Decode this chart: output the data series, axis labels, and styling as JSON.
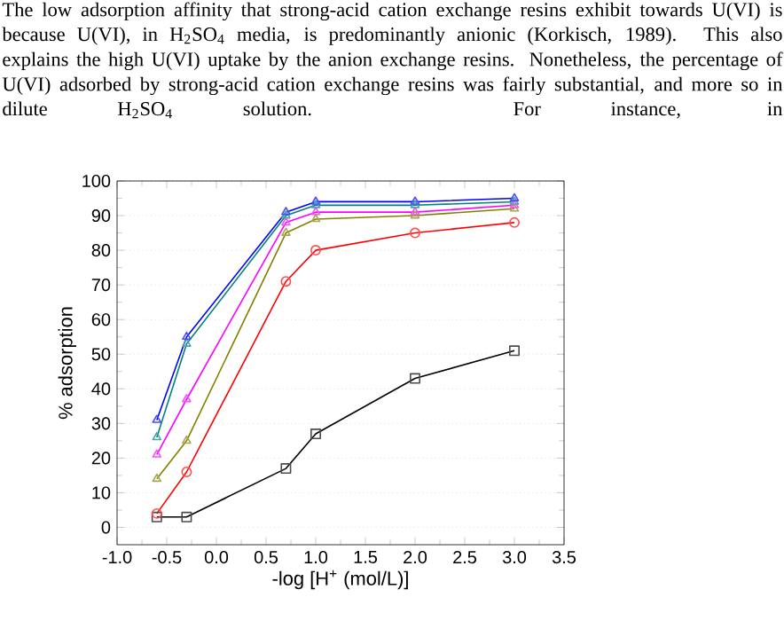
{
  "chart_data": {
    "type": "line",
    "annotations": [
      "The low adsorption affinity that strong-acid cation exchange resins exhibit towards U(VI) is",
      "because U(VI), in H$_{2}$SO$_{4}$ media, is predominantly anionic (Korkisch, 1989). This also",
      "explains the high U(VI) uptake by the anion exchange resins. Nonetheless, the percentage of",
      "U(VI) adsorbed by strong-acid cation exchange resins was fairly substantial, and more so in",
      "dilute H$_{2}$SO$_{4}$ solution. For instance, in"
    ],
    "xlabel": "-log [H$^{+}$ (mol/L)]",
    "ylabel": "% adsorption",
    "x": [
      -0.6,
      -0.3,
      0.7,
      1.0,
      2.0,
      3.0
    ],
    "series": [
      {
        "color": "#000000",
        "marker": "square",
        "values": [
          3,
          3,
          17,
          27,
          43,
          51
        ]
      },
      {
        "color": "#ff0000",
        "marker": "circle",
        "values": [
          4,
          16,
          71,
          80,
          85,
          88
        ]
      },
      {
        "color": "#808000",
        "marker": "triangle",
        "values": [
          14,
          25,
          85,
          89,
          90,
          92
        ]
      },
      {
        "color": "#ff00ff",
        "marker": "triangle",
        "values": [
          21,
          37,
          88,
          91,
          91,
          93
        ]
      },
      {
        "color": "#008080",
        "marker": "triangle",
        "values": [
          26,
          53,
          90,
          93,
          93,
          94
        ]
      },
      {
        "color": "#0000ff",
        "marker": "triangle",
        "values": [
          31,
          55,
          91,
          94,
          94,
          95
        ]
      }
    ],
    "xlim": [
      -1.0,
      3.5
    ],
    "xticks": [
      {
        "value": -1.0,
        "label": "-1.0"
      },
      {
        "value": -0.5,
        "label": "-0.5"
      },
      {
        "value": 0,
        "label": "0.0"
      },
      0.5,
      {
        "value": 1.0,
        "label": "1.0"
      },
      1.5,
      {
        "value": 2.0,
        "label": "2.0"
      },
      2.5,
      {
        "value": 3.0,
        "label": "3.0"
      },
      3.5
    ],
    "ylim": [
      -5,
      100
    ],
    "yticks": [
      0,
      10,
      20,
      30,
      40,
      50,
      60,
      70,
      80,
      90,
      100
    ],
    "grid": "y",
    "line_style": "solid"
  }
}
